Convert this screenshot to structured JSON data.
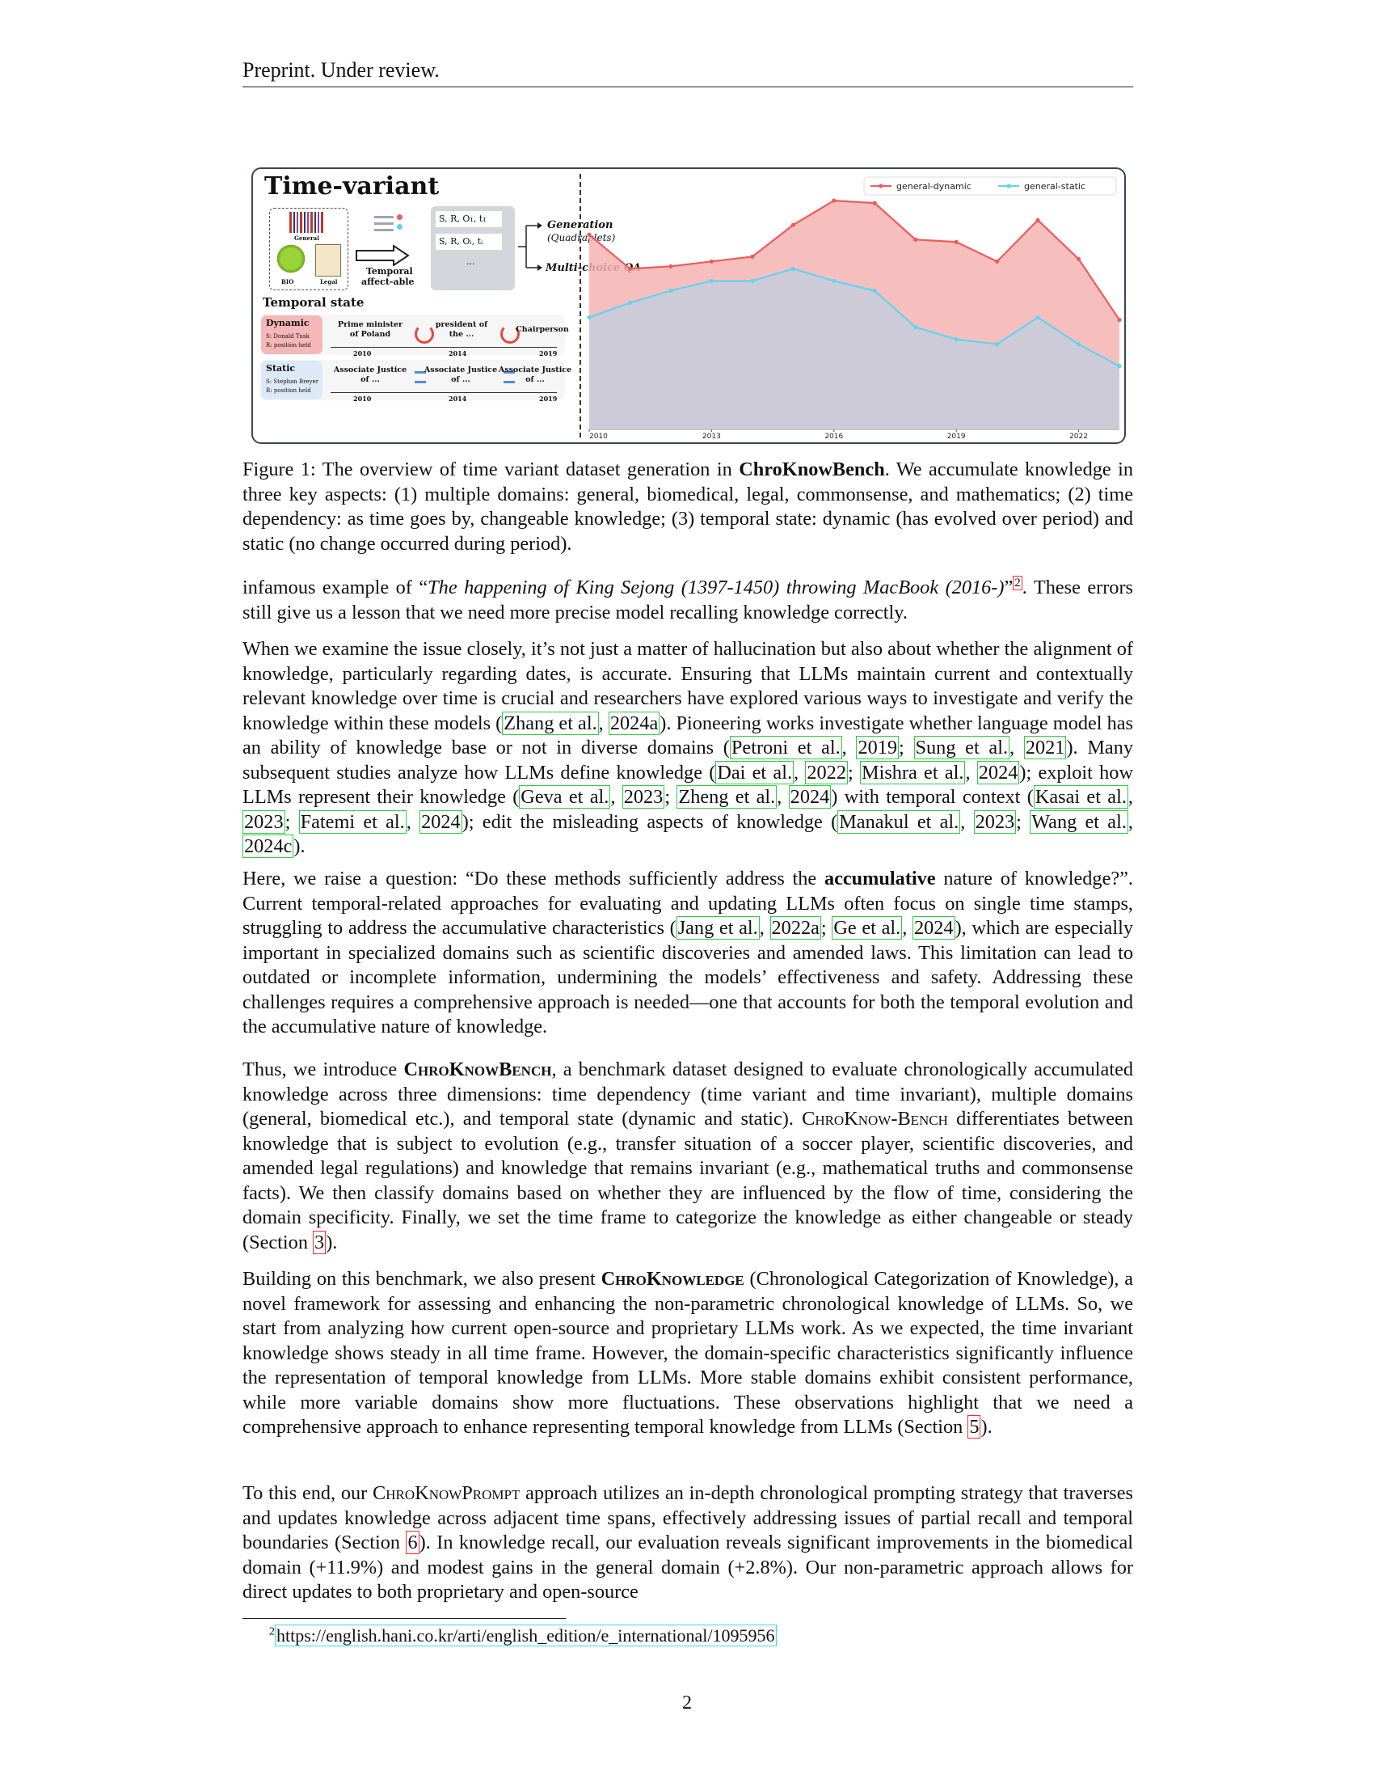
{
  "header": {
    "text": "Preprint. Under review."
  },
  "figure": {
    "title": "Time-variant",
    "domains": {
      "general": "General",
      "bio": "BIO",
      "legal": "Legal"
    },
    "affect_label_1": "Temporal",
    "affect_label_2": "affect-able",
    "triples": [
      "S, R, O₁, t₁",
      "S, R, Oᵢ, tᵢ",
      "..."
    ],
    "generation": "Generation",
    "quadruplets": "(Quadraplets)",
    "mcqa": "Multi-choice QA",
    "temporal_state": "Temporal state",
    "dynamic": {
      "label": "Dynamic",
      "s": "S: Donald Tusk",
      "r": "R: position held",
      "items": [
        "Prime minister",
        "of Poland",
        "president of",
        "the ...",
        "Chairperson"
      ],
      "years": [
        "2010",
        "2014",
        "2019"
      ]
    },
    "static": {
      "label": "Static",
      "s": "S: Stephan Breyer",
      "r": "R: position held",
      "items": [
        "Associate Justice",
        "of ...",
        "Associate Justice",
        "of ...",
        "Associate Justice",
        "of ..."
      ],
      "years": [
        "2010",
        "2014",
        "2019"
      ]
    }
  },
  "chart_data": {
    "type": "area",
    "x": [
      2010,
      2011,
      2012,
      2013,
      2014,
      2015,
      2016,
      2017,
      2018,
      2019,
      2020,
      2021,
      2022,
      2023
    ],
    "series": [
      {
        "name": "general-dynamic",
        "values": [
          0.8,
          0.66,
          0.67,
          0.69,
          0.71,
          0.84,
          0.94,
          0.93,
          0.78,
          0.77,
          0.69,
          0.86,
          0.7,
          0.45
        ]
      },
      {
        "name": "general-static",
        "values": [
          0.46,
          0.52,
          0.57,
          0.61,
          0.61,
          0.66,
          0.61,
          0.57,
          0.42,
          0.37,
          0.35,
          0.46,
          0.35,
          0.26
        ]
      }
    ],
    "xticks": [
      "2010",
      "2013",
      "2016",
      "2019",
      "2022"
    ],
    "ylim": [
      0,
      1.05
    ],
    "legend": "top-right",
    "colors": {
      "general-dynamic": "#ef5b5b",
      "general-static": "#5fd3f3"
    },
    "fills": {
      "general-dynamic": "#f6b3b3",
      "general-static": "#c9ccda"
    }
  },
  "caption": {
    "prefix": "Figure 1: The overview of time variant dataset generation in ",
    "bold": "ChroKnowBench",
    "rest": ". We accumulate knowledge in three key aspects: (1) multiple domains: general, biomedical, legal, commonsense, and mathematics; (2) time dependency: as time goes by, changeable knowledge; (3) temporal state: dynamic (has evolved over period) and static (no change occurred during period)."
  },
  "p1": {
    "a": "infamous example of “",
    "italic": "The happening of King Sejong (1397-1450) throwing MacBook (2016-)",
    "b": "”",
    "fnref": "2",
    "c": ". These errors still give us a lesson that we need more precise model recalling knowledge correctly."
  },
  "p2": {
    "t1": "When we examine the issue closely, it’s not just a matter of hallucination but also about whether the alignment of knowledge, particularly regarding dates, is accurate. Ensuring that LLMs maintain current and contextually relevant knowledge over time is crucial and researchers have explored various ways to investigate and verify the knowledge within these models (",
    "c1": "Zhang et al.",
    "c1y": "2024a",
    "t2": "). Pioneering works investigate whether language model has an ability of knowledge base or not in diverse domains (",
    "c2": "Petroni et al.",
    "c2y": "2019",
    "c3": "Sung et al.",
    "c3y": "2021",
    "t3": "). Many subsequent studies analyze how LLMs define knowledge (",
    "c4": "Dai et al.",
    "c4y": "2022",
    "c5": "Mishra et al.",
    "c5y": "2024",
    "t4": "); exploit how LLMs represent their knowledge (",
    "c6": "Geva et al.",
    "c6y": "2023",
    "c7": "Zheng et al.",
    "c7y": "2024",
    "t5": ") with temporal context (",
    "c8": "Kasai et al.",
    "c8y": "2023",
    "c9": "Fatemi et al.",
    "c9y": "2024",
    "t6": "); edit the misleading aspects of knowledge (",
    "c10": "Manakul et al.",
    "c10y": "2023",
    "c11": "Wang et al.",
    "c11y": "2024c",
    "t7": ")."
  },
  "p3": {
    "t1": "Here, we raise a question: “Do these methods sufficiently address the ",
    "bold": "accumulative",
    "t2": " nature of knowledge?”. Current temporal-related approaches for evaluating and updating LLMs often focus on single time stamps, struggling to address the accumulative characteristics (",
    "c1": "Jang et al.",
    "c1y": "2022a",
    "c2": "Ge et al.",
    "c2y": "2024",
    "t3": "), which are especially important in specialized domains such as scientific discoveries and amended laws. This limitation can lead to outdated or incomplete information, undermining the models’ effectiveness and safety. Addressing these challenges requires a comprehensive approach is needed—one that accounts for both the temporal evolution and the accumulative nature of knowledge."
  },
  "p4": {
    "t1": "Thus, we introduce ",
    "name_bold": "ChroKnowBench",
    "t2": ", a benchmark dataset designed to evaluate chronologically accumulated knowledge across three dimensions: time dependency (time variant and time invariant), multiple domains (general, biomedical etc.), and temporal state (dynamic and static). ",
    "name_sc": "ChroKnow-Bench",
    "t3": " differentiates between knowledge that is subject to evolution (e.g., transfer situation of a soccer player, scientific discoveries, and amended legal regulations) and knowledge that remains invariant (e.g., mathematical truths and commonsense facts). We then classify domains based on whether they are influenced by the flow of time, considering the domain specificity. Finally, we set the time frame to categorize the knowledge as either changeable or steady (Section ",
    "ref": "3",
    "t4": ")."
  },
  "p5": {
    "t1": "Building on this benchmark, we also present ",
    "name_bold": "ChroKnowledge",
    "t2": " (Chronological Categorization of Knowledge), a novel framework for assessing and enhancing the non-parametric chronological knowledge of LLMs. So, we start from analyzing how current open-source and proprietary LLMs work. As we expected, the time invariant knowledge shows steady in all time frame. However, the domain-specific characteristics significantly influence the representation of temporal knowledge from LLMs. More stable domains exhibit consistent performance, while more variable domains show more fluctuations. These observations highlight that we need a comprehensive approach to enhance representing temporal knowledge from LLMs (Section ",
    "ref": "5",
    "t3": ")."
  },
  "p6": {
    "t1": "To this end, our ",
    "name_sc": "ChroKnowPrompt",
    "t2": " approach utilizes an in-depth chronological prompting strategy that traverses and updates knowledge across adjacent time spans, effectively addressing issues of partial recall and temporal boundaries (Section ",
    "ref": "6",
    "t3": "). In knowledge recall, our evaluation reveals significant improvements in the biomedical domain (+11.9%) and modest gains in the general domain (+2.8%). Our non-parametric approach allows for direct updates to both proprietary and open-source"
  },
  "footnote": {
    "num": "2",
    "url": "https://english.hani.co.kr/arti/english_edition/e_international/1095956"
  },
  "page_number": "2"
}
